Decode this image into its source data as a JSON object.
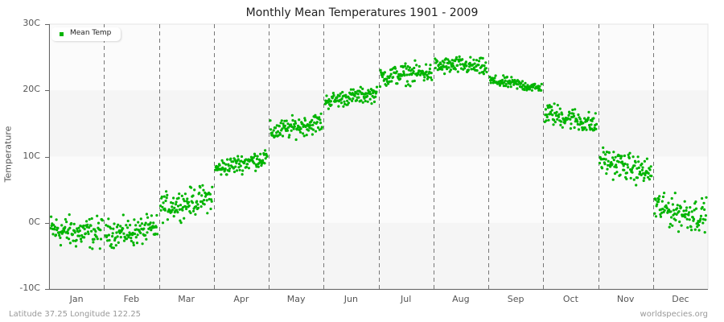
{
  "title": "Monthly Mean Temperatures 1901 - 2009",
  "footer": {
    "location": "Latitude 37.25 Longitude 122.25",
    "source": "worldspecies.org"
  },
  "legend": {
    "label": "Mean Temp",
    "color": "#00b400"
  },
  "colors": {
    "points": "#00b400",
    "band_light": "#fbfbfb",
    "band_dark": "#f5f5f5",
    "grid_line": "#777777",
    "axis": "#666666"
  },
  "chart_data": {
    "type": "scatter",
    "title": "Monthly Mean Temperatures 1901 - 2009",
    "xlabel": "",
    "ylabel": "Temperature",
    "ylim": [
      -10,
      30
    ],
    "yticks": [
      "30C",
      "20C",
      "10C",
      "0C",
      "-10C"
    ],
    "ytick_values": [
      30,
      20,
      10,
      0,
      -10
    ],
    "categories": [
      "Jan",
      "Feb",
      "Mar",
      "Apr",
      "May",
      "Jun",
      "Jul",
      "Aug",
      "Sep",
      "Oct",
      "Nov",
      "Dec"
    ],
    "grid": "vertical dashed month separators, alternating horizontal bands",
    "legend_position": "top-left",
    "series": [
      {
        "name": "Mean Temp",
        "color": "#00b400",
        "years": "1901-2009",
        "monthly_summary": [
          {
            "month": "Jan",
            "mean": -1.5,
            "min": -5.0,
            "max": 2.0
          },
          {
            "month": "Feb",
            "mean": -1.5,
            "min": -4.0,
            "max": 2.0
          },
          {
            "month": "Mar",
            "mean": 3.0,
            "min": 0.0,
            "max": 6.0
          },
          {
            "month": "Apr",
            "mean": 9.0,
            "min": 7.0,
            "max": 11.0
          },
          {
            "month": "May",
            "mean": 14.5,
            "min": 12.0,
            "max": 16.5
          },
          {
            "month": "Jun",
            "mean": 19.0,
            "min": 17.0,
            "max": 20.5
          },
          {
            "month": "Jul",
            "mean": 22.5,
            "min": 20.0,
            "max": 24.5
          },
          {
            "month": "Aug",
            "mean": 23.8,
            "min": 22.0,
            "max": 25.8
          },
          {
            "month": "Sep",
            "mean": 21.0,
            "min": 20.0,
            "max": 22.5
          },
          {
            "month": "Oct",
            "mean": 15.8,
            "min": 13.5,
            "max": 18.5
          },
          {
            "month": "Nov",
            "mean": 8.5,
            "min": 5.5,
            "max": 11.5
          },
          {
            "month": "Dec",
            "mean": 1.5,
            "min": -3.0,
            "max": 4.5
          }
        ]
      }
    ]
  }
}
